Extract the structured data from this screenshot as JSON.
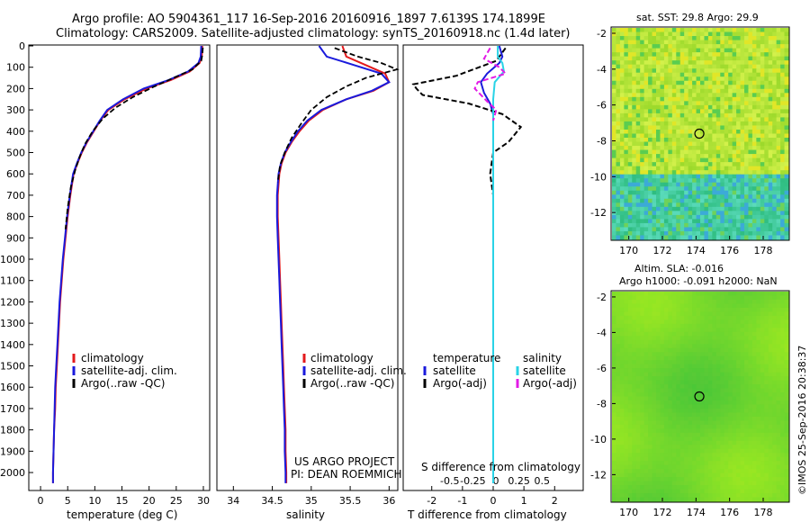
{
  "header": {
    "line1": "Argo profile: AO 5904361_117 16-Sep-2016 20160916_1897 7.6139S 174.1899E",
    "line2": "Climatology: CARS2009. Satellite-adjusted climatology: synTS_20160918.nc (1.4d later)"
  },
  "colors": {
    "climatology": "#e31a1c",
    "satellite": "#1a1adc",
    "argo": "#000000",
    "sal_satellite": "#29d3e6",
    "sal_argo": "#e21be6"
  },
  "legend_profiles": {
    "climatology": "climatology",
    "satellite": "satellite-adj. clim.",
    "argo": "Argo(..raw -QC)"
  },
  "legend_diff": {
    "temp_head": "temperature",
    "sal_head": "salinity",
    "satellite": "satellite",
    "argo": "Argo(-adj)"
  },
  "project": {
    "line1": "US ARGO PROJECT",
    "line2": "PI: DEAN ROEMMICH"
  },
  "sst_title": "sat. SST: 29.8 Argo: 29.9",
  "alt_title1": "Altim. SLA: -0.016",
  "alt_title2": "Argo h1000: -0.091 h2000: NaN",
  "credit": "©IMOS 25-Sep-2016 20:38:37",
  "chart_data": [
    {
      "type": "line",
      "xlabel": "temperature (deg C)",
      "ylim": [
        2080,
        0
      ],
      "xlim": [
        -2,
        31
      ],
      "xticks": [
        0,
        5,
        10,
        15,
        20,
        25,
        30
      ],
      "yticks": [
        0,
        100,
        200,
        300,
        400,
        500,
        600,
        700,
        800,
        900,
        1000,
        1100,
        1200,
        1300,
        1400,
        1500,
        1600,
        1700,
        1800,
        1900,
        2000
      ],
      "series": [
        {
          "name": "climatology",
          "points": [
            [
              29.8,
              0
            ],
            [
              29.7,
              50
            ],
            [
              29.3,
              80
            ],
            [
              27.5,
              120
            ],
            [
              24,
              160
            ],
            [
              19.5,
              200
            ],
            [
              15.5,
              250
            ],
            [
              12.5,
              300
            ],
            [
              11,
              350
            ],
            [
              9.8,
              400
            ],
            [
              8.6,
              450
            ],
            [
              7.6,
              500
            ],
            [
              6.8,
              550
            ],
            [
              6.1,
              600
            ],
            [
              5.5,
              700
            ],
            [
              5.0,
              800
            ],
            [
              4.6,
              900
            ],
            [
              4.2,
              1000
            ],
            [
              3.9,
              1100
            ],
            [
              3.6,
              1200
            ],
            [
              3.4,
              1300
            ],
            [
              3.2,
              1400
            ],
            [
              3.0,
              1500
            ],
            [
              2.8,
              1600
            ],
            [
              2.7,
              1700
            ],
            [
              2.5,
              1800
            ],
            [
              2.4,
              1900
            ],
            [
              2.3,
              2000
            ],
            [
              2.3,
              2050
            ]
          ]
        },
        {
          "name": "satellite-adj. clim.",
          "points": [
            [
              29.6,
              0
            ],
            [
              29.5,
              50
            ],
            [
              29.1,
              80
            ],
            [
              27.2,
              120
            ],
            [
              23.6,
              160
            ],
            [
              19,
              200
            ],
            [
              15.2,
              250
            ],
            [
              12.3,
              300
            ],
            [
              10.9,
              350
            ],
            [
              9.7,
              400
            ],
            [
              8.5,
              450
            ],
            [
              7.5,
              500
            ],
            [
              6.7,
              550
            ],
            [
              6.0,
              600
            ],
            [
              5.4,
              700
            ],
            [
              4.9,
              800
            ],
            [
              4.5,
              900
            ],
            [
              4.1,
              1000
            ],
            [
              3.8,
              1100
            ],
            [
              3.5,
              1200
            ],
            [
              3.3,
              1300
            ],
            [
              3.1,
              1400
            ],
            [
              2.9,
              1500
            ],
            [
              2.7,
              1600
            ],
            [
              2.6,
              1700
            ],
            [
              2.5,
              1800
            ],
            [
              2.4,
              1900
            ],
            [
              2.3,
              2000
            ],
            [
              2.3,
              2050
            ]
          ]
        },
        {
          "name": "Argo(..raw -QC)",
          "points": [
            [
              29.9,
              8
            ],
            [
              29.8,
              40
            ],
            [
              29.6,
              70
            ],
            [
              28,
              110
            ],
            [
              24.5,
              150
            ],
            [
              21,
              190
            ],
            [
              17,
              240
            ],
            [
              13.8,
              290
            ],
            [
              11.5,
              340
            ],
            [
              9.6,
              400
            ],
            [
              8.2,
              460
            ],
            [
              7.2,
              520
            ],
            [
              6.4,
              580
            ],
            [
              5.6,
              660
            ],
            [
              5.0,
              760
            ],
            [
              4.6,
              860
            ]
          ]
        }
      ]
    },
    {
      "type": "line",
      "xlabel": "salinity",
      "ylim": [
        2080,
        0
      ],
      "xlim": [
        33.8,
        36.1
      ],
      "xticks": [
        34,
        34.5,
        35,
        35.5,
        36
      ],
      "series": [
        {
          "name": "climatology",
          "points": [
            [
              35.4,
              0
            ],
            [
              35.45,
              50
            ],
            [
              35.7,
              90
            ],
            [
              35.95,
              130
            ],
            [
              36.0,
              170
            ],
            [
              35.8,
              210
            ],
            [
              35.45,
              250
            ],
            [
              35.15,
              300
            ],
            [
              34.97,
              350
            ],
            [
              34.85,
              400
            ],
            [
              34.75,
              450
            ],
            [
              34.67,
              500
            ],
            [
              34.62,
              550
            ],
            [
              34.59,
              600
            ],
            [
              34.57,
              700
            ],
            [
              34.57,
              800
            ],
            [
              34.58,
              900
            ],
            [
              34.59,
              1000
            ],
            [
              34.6,
              1100
            ],
            [
              34.61,
              1200
            ],
            [
              34.62,
              1300
            ],
            [
              34.63,
              1400
            ],
            [
              34.64,
              1500
            ],
            [
              34.65,
              1600
            ],
            [
              34.66,
              1700
            ],
            [
              34.67,
              1800
            ],
            [
              34.67,
              1900
            ],
            [
              34.68,
              2000
            ],
            [
              34.68,
              2050
            ]
          ]
        },
        {
          "name": "satellite-adj. clim.",
          "points": [
            [
              35.1,
              0
            ],
            [
              35.2,
              50
            ],
            [
              35.55,
              90
            ],
            [
              35.9,
              130
            ],
            [
              36.0,
              170
            ],
            [
              35.78,
              210
            ],
            [
              35.45,
              250
            ],
            [
              35.13,
              300
            ],
            [
              34.95,
              350
            ],
            [
              34.83,
              400
            ],
            [
              34.74,
              450
            ],
            [
              34.66,
              500
            ],
            [
              34.61,
              550
            ],
            [
              34.58,
              600
            ],
            [
              34.56,
              700
            ],
            [
              34.56,
              800
            ],
            [
              34.57,
              900
            ],
            [
              34.58,
              1000
            ],
            [
              34.59,
              1100
            ],
            [
              34.6,
              1200
            ],
            [
              34.61,
              1300
            ],
            [
              34.62,
              1400
            ],
            [
              34.63,
              1500
            ],
            [
              34.64,
              1600
            ],
            [
              34.65,
              1700
            ],
            [
              34.66,
              1800
            ],
            [
              34.66,
              1900
            ],
            [
              34.67,
              2000
            ],
            [
              34.67,
              2050
            ]
          ]
        },
        {
          "name": "Argo(..raw -QC)",
          "points": [
            [
              35.3,
              10
            ],
            [
              35.6,
              50
            ],
            [
              35.9,
              80
            ],
            [
              36.1,
              110
            ],
            [
              35.7,
              150
            ],
            [
              35.45,
              190
            ],
            [
              35.2,
              240
            ],
            [
              35.0,
              300
            ],
            [
              34.88,
              360
            ],
            [
              34.75,
              430
            ],
            [
              34.66,
              500
            ],
            [
              34.6,
              560
            ],
            [
              34.57,
              640
            ]
          ]
        }
      ]
    },
    {
      "type": "line",
      "xlabel": "T difference from climatology",
      "top_label": "S difference from climatology",
      "ylim": [
        2080,
        0
      ],
      "xlim": [
        -2.9,
        2.9
      ],
      "xticks": [
        -2,
        -1,
        0,
        1,
        2
      ],
      "top_ticks": [
        "-0.5",
        "-0.25",
        "0",
        "0.25",
        "0.5"
      ],
      "series": [
        {
          "name": "temperature satellite",
          "points": [
            [
              0.2,
              0
            ],
            [
              0.3,
              50
            ],
            [
              0.2,
              80
            ],
            [
              -0.2,
              130
            ],
            [
              -0.4,
              170
            ],
            [
              -0.3,
              220
            ],
            [
              -0.1,
              270
            ],
            [
              0,
              320
            ],
            [
              0,
              400
            ],
            [
              0,
              600
            ],
            [
              0,
              1000
            ],
            [
              0,
              1500
            ],
            [
              0,
              2050
            ]
          ]
        },
        {
          "name": "temperature Argo(-adj)",
          "points": [
            [
              0.4,
              10
            ],
            [
              0.1,
              70
            ],
            [
              -1.2,
              140
            ],
            [
              -2.6,
              180
            ],
            [
              -2.5,
              200
            ],
            [
              -2.3,
              230
            ],
            [
              -0.8,
              270
            ],
            [
              0.3,
              320
            ],
            [
              0.9,
              380
            ],
            [
              0.5,
              450
            ],
            [
              0,
              500
            ],
            [
              -0.1,
              600
            ],
            [
              0,
              700
            ],
            [
              0,
              800
            ]
          ]
        },
        {
          "name": "salinity satellite",
          "points": [
            [
              0.15,
              0
            ],
            [
              0.15,
              50
            ],
            [
              0.3,
              80
            ],
            [
              0.35,
              120
            ],
            [
              0.05,
              170
            ],
            [
              0,
              250
            ],
            [
              0,
              350
            ],
            [
              0,
              600
            ],
            [
              0,
              1000
            ],
            [
              0,
              1500
            ],
            [
              0,
              2050
            ]
          ]
        },
        {
          "name": "salinity Argo(-adj)",
          "points": [
            [
              -0.1,
              10
            ],
            [
              -0.3,
              60
            ],
            [
              0.2,
              100
            ],
            [
              0.4,
              130
            ],
            [
              -0.5,
              170
            ],
            [
              -0.6,
              200
            ],
            [
              -0.2,
              260
            ],
            [
              0.1,
              300
            ],
            [
              0,
              350
            ]
          ]
        }
      ]
    },
    {
      "type": "heatmap",
      "title": "sat. SST: 29.8 Argo: 29.9",
      "xlim": [
        169,
        179.5
      ],
      "ylim": [
        -13.5,
        -1.7
      ],
      "xticks": [
        170,
        172,
        174,
        176,
        178
      ],
      "yticks": [
        -2,
        -4,
        -6,
        -8,
        -10,
        -12
      ],
      "marker": [
        174.2,
        -7.6
      ]
    },
    {
      "type": "heatmap",
      "title": "Altim. SLA: -0.016",
      "xlim": [
        169,
        179.5
      ],
      "ylim": [
        -13.5,
        -1.7
      ],
      "xticks": [
        170,
        172,
        174,
        176,
        178
      ],
      "yticks": [
        -2,
        -4,
        -6,
        -8,
        -10,
        -12
      ],
      "marker": [
        174.2,
        -7.6
      ]
    }
  ]
}
